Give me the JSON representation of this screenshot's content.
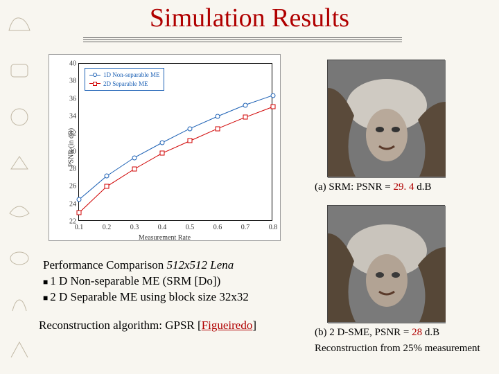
{
  "title": "Simulation Results",
  "chart": {
    "type": "line",
    "ylabel": "PSNR (in dB)",
    "xlabel": "Measurement Rate",
    "ylim": [
      22,
      40
    ],
    "xlim": [
      0.1,
      0.8
    ],
    "yticks": [
      22,
      24,
      26,
      28,
      30,
      32,
      34,
      36,
      38,
      40
    ],
    "xticks": [
      0.1,
      0.2,
      0.3,
      0.4,
      0.5,
      0.6,
      0.7,
      0.8
    ],
    "grid": false,
    "background_color": "#ffffff",
    "axis_color": "#000000",
    "legend": {
      "position": "top-left",
      "items": [
        {
          "label": "1D Non-separable ME",
          "color": "#1a5fb4",
          "marker": "circle"
        },
        {
          "label": "2D Separable ME",
          "color": "#d00000",
          "marker": "square"
        }
      ]
    },
    "series": [
      {
        "name": "1D Non-separable ME",
        "color": "#1a5fb4",
        "marker": "circle",
        "linewidth": 1,
        "x": [
          0.1,
          0.2,
          0.3,
          0.4,
          0.5,
          0.6,
          0.7,
          0.8
        ],
        "y": [
          24.5,
          27.2,
          29.3,
          31.0,
          32.6,
          34.0,
          35.3,
          36.4
        ]
      },
      {
        "name": "2D Separable ME",
        "color": "#d00000",
        "marker": "square",
        "linewidth": 1,
        "x": [
          0.1,
          0.2,
          0.3,
          0.4,
          0.5,
          0.6,
          0.7,
          0.8
        ],
        "y": [
          23.0,
          26.0,
          28.0,
          29.8,
          31.2,
          32.6,
          33.9,
          35.1
        ]
      }
    ]
  },
  "caption_a": {
    "prefix": "(a) SRM: PSNR = ",
    "value": "29. 4",
    "suffix": " d.B"
  },
  "caption_b": {
    "prefix": "(b) 2 D-SME, PSNR = ",
    "value": "28",
    "suffix": " d.B",
    "sub": "Reconstruction from 25% measurement"
  },
  "perf": {
    "heading_a": "Performance Comparison ",
    "heading_b": "512x512 Lena",
    "bullet1": "1 D Non-separable ME (SRM [Do])",
    "bullet2": "2 D Separable ME  using block size 32x32"
  },
  "recon": {
    "prefix": "Reconstruction algorithm: GPSR [",
    "link": "Figueiredo",
    "suffix": "]"
  }
}
